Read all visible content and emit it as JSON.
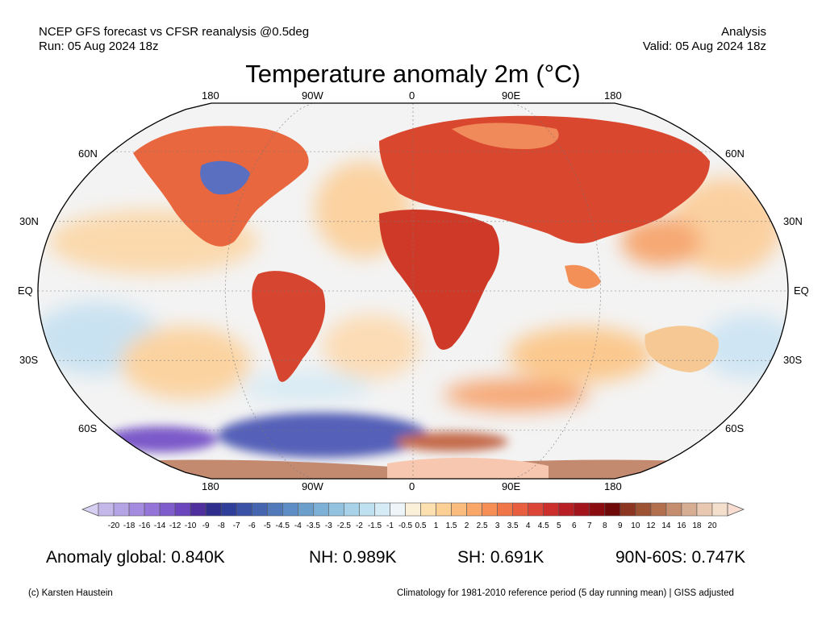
{
  "header": {
    "line1_left": "NCEP GFS forecast vs CFSR reanalysis @0.5deg",
    "line2_left": "Run: 05 Aug 2024 18z",
    "line1_right": "Analysis",
    "line2_right": "Valid: 05 Aug 2024 18z"
  },
  "title": "Temperature anomaly 2m (°C)",
  "map": {
    "projection": "Robinson",
    "lon_labels": [
      "180",
      "90W",
      "0",
      "90E",
      "180"
    ],
    "lat_labels": [
      "60N",
      "30N",
      "EQ",
      "30S",
      "60S"
    ],
    "colors": {
      "ocean_neutral": "#f2f2f2",
      "warm_light": "#fbd7a6",
      "warm_mid": "#f39a5c",
      "warm_strong": "#d7301f",
      "warm_extreme": "#a50f15",
      "cold_light": "#c7e2f0",
      "cold_mid": "#6aa3d4",
      "cold_strong": "#3b4fa8",
      "cold_extreme": "#6a3fb8",
      "antarctic_warm": "#c98a73"
    }
  },
  "colorbar": {
    "ticks": [
      "-20",
      "-18",
      "-16",
      "-14",
      "-12",
      "-10",
      "-9",
      "-8",
      "-7",
      "-6",
      "-5",
      "-4.5",
      "-4",
      "-3.5",
      "-3",
      "-2.5",
      "-2",
      "-1.5",
      "-1",
      "-0.5",
      "0.5",
      "1",
      "1.5",
      "2",
      "2.5",
      "3",
      "3.5",
      "4",
      "4.5",
      "5",
      "6",
      "7",
      "8",
      "9",
      "10",
      "12",
      "14",
      "16",
      "18",
      "20"
    ],
    "colors": [
      "#c4b8ea",
      "#b4a3e5",
      "#a48bdf",
      "#9474d8",
      "#7e5ccc",
      "#6a45bd",
      "#4f2f9e",
      "#2f2e8c",
      "#2f3f99",
      "#3a51a6",
      "#4565b0",
      "#5279ba",
      "#5e8cc4",
      "#6c9ecc",
      "#7db0d6",
      "#92c2df",
      "#a8d2e8",
      "#bfe0f0",
      "#d5ebf6",
      "#eef5f9",
      "#fbf1d8",
      "#fce0b0",
      "#fccf95",
      "#fbbd7e",
      "#f9a768",
      "#f68f56",
      "#f07648",
      "#e85e3e",
      "#da4535",
      "#cc2f2b",
      "#b81f24",
      "#a3131b",
      "#8a0c10",
      "#700a0a",
      "#8c3520",
      "#9e5234",
      "#b16f4e",
      "#c48d6e",
      "#d6ac92",
      "#e8c8b0",
      "#f4dfcc"
    ],
    "end_under_color": "#d8d0f2",
    "end_over_color": "#f8ddd0"
  },
  "stats": {
    "global": "Anomaly global: 0.840K",
    "nh": "NH: 0.989K",
    "sh": "SH: 0.691K",
    "arctic": "90N-60S: 0.747K"
  },
  "footer": {
    "left": "(c) Karsten Haustein",
    "right": "Climatology for 1981-2010 reference period (5 day running mean) | GISS adjusted"
  }
}
